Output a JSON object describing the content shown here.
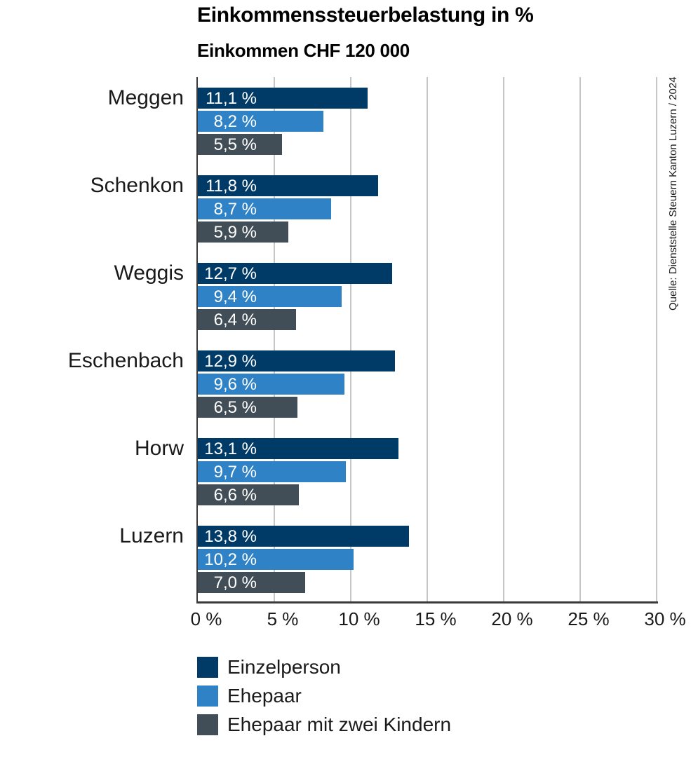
{
  "header": {
    "title": "Einkommenssteuerbelastung in %",
    "subtitle": "Einkommen CHF 120 000"
  },
  "source_note": "Quelle: Dienststelle Steuern Kanton Luzern / 2024",
  "colors": {
    "einzelperson": "#003a66",
    "ehepaar": "#2e82c5",
    "ehepaar_mit_kindern": "#424e57",
    "grid": "#c6c6c6",
    "axis": "#3a3a3a",
    "bar_value_text": "#ffffff"
  },
  "chart_data": {
    "type": "bar",
    "orientation": "horizontal",
    "title": "Einkommenssteuerbelastung in %",
    "subtitle": "Einkommen CHF 120 000",
    "categories": [
      "Meggen",
      "Schenkon",
      "Weggis",
      "Eschenbach",
      "Horw",
      "Luzern"
    ],
    "series": [
      {
        "name": "Einzelperson",
        "color": "#003a66",
        "values": [
          11.1,
          11.8,
          12.7,
          12.9,
          13.1,
          13.8
        ],
        "labels": [
          "11,1 %",
          "11,8 %",
          "12,7 %",
          "12,9 %",
          "13,1 %",
          "13,8 %"
        ]
      },
      {
        "name": "Ehepaar",
        "color": "#2e82c5",
        "values": [
          8.2,
          8.7,
          9.4,
          9.6,
          9.7,
          10.2
        ],
        "labels": [
          "8,2 %",
          "8,7 %",
          "9,4 %",
          "9,6 %",
          "9,7 %",
          "10,2 %"
        ]
      },
      {
        "name": "Ehepaar mit zwei Kindern",
        "color": "#424e57",
        "values": [
          5.5,
          5.9,
          6.4,
          6.5,
          6.6,
          7.0
        ],
        "labels": [
          "5,5 %",
          "5,9 %",
          "6,4 %",
          "6,5 %",
          "6,6 %",
          "7,0 %"
        ]
      }
    ],
    "xlim": [
      0,
      30
    ],
    "xticks": [
      "0 %",
      "5 %",
      "10 %",
      "15 %",
      "20 %",
      "25 %",
      "30 %"
    ],
    "xtick_values": [
      0,
      5,
      10,
      15,
      20,
      25,
      30
    ],
    "grid": true,
    "legend_position": "bottom"
  }
}
